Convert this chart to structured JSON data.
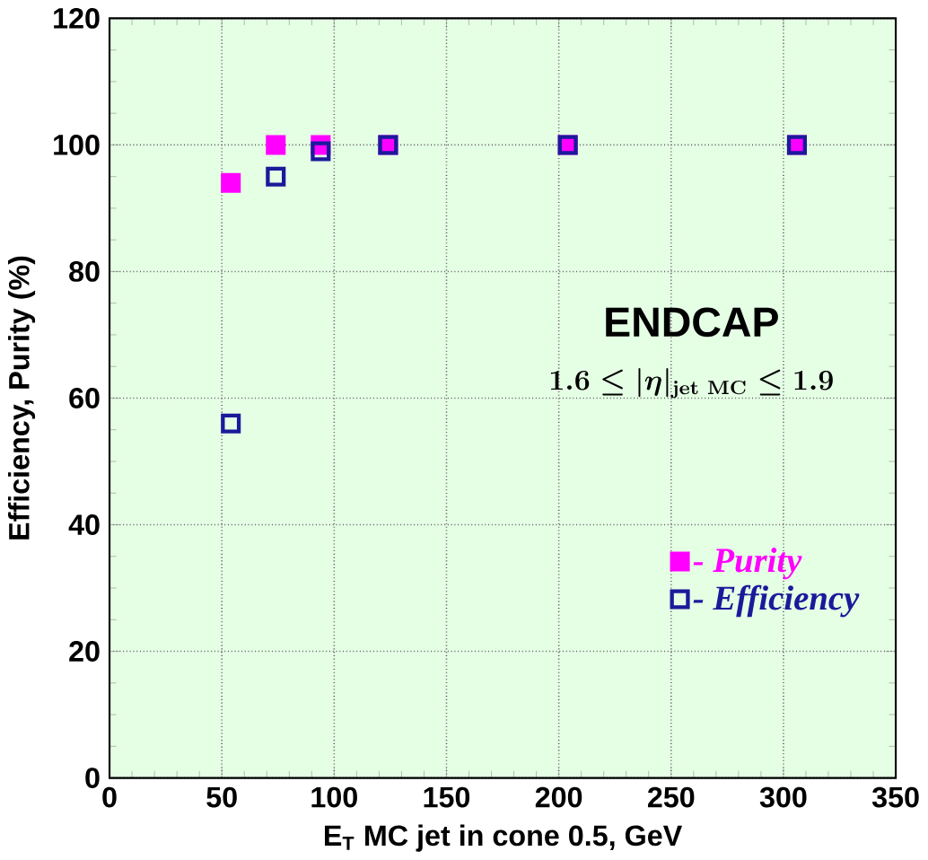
{
  "chart_data": {
    "type": "scatter",
    "xlabel": "E$_{T}$ MC jet in cone 0.5, GeV",
    "ylabel": "Efficiency, Purity (%)",
    "xlim": [
      0,
      350
    ],
    "xticks": [
      0,
      50,
      100,
      150,
      200,
      250,
      300,
      350
    ],
    "ylim": [
      0,
      120
    ],
    "yticks": [
      0,
      20,
      40,
      60,
      80,
      100,
      120
    ],
    "grid": true,
    "legend": "right",
    "marker": "square",
    "annotations": [
      "ENDCAP",
      "\\mathbf{1.6} \\leq |\\eta|_{\\mathbf{jet\\ MC}} \\leq \\mathbf{1.9}"
    ],
    "series": [
      {
        "name": "- Purity",
        "color": "#ff00ff",
        "x": [
          54,
          74,
          94,
          124,
          204,
          306
        ],
        "values": [
          94,
          100,
          100,
          100,
          100,
          100
        ]
      },
      {
        "name": "- Efficiency",
        "color": "#1a1a9a",
        "x": [
          54,
          74,
          94,
          124,
          204,
          306
        ],
        "values": [
          56,
          95,
          99,
          100,
          100,
          100
        ]
      }
    ]
  }
}
